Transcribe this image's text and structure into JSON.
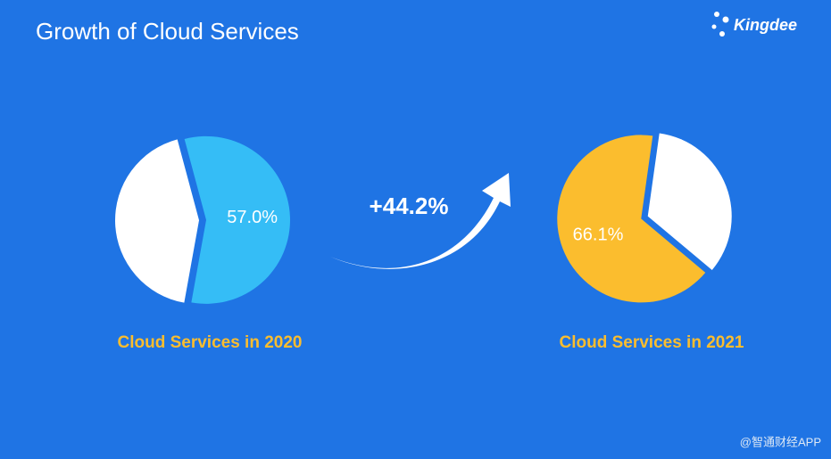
{
  "title": "Growth of Cloud Services",
  "logo": "Kingdee",
  "growth": "+44.2%",
  "watermark": "@智通财经APP",
  "chart_data": [
    {
      "type": "pie",
      "title": "Cloud Services in 2020",
      "values": [
        57.0,
        43.0
      ],
      "value_labels": [
        "57.0%",
        null
      ],
      "colors": [
        "#35bdf6",
        "#ffffff"
      ]
    },
    {
      "type": "pie",
      "title": "Cloud Services in 2021",
      "values": [
        66.1,
        33.9
      ],
      "value_labels": [
        "66.1%",
        null
      ],
      "colors": [
        "#fbbd2e",
        "#ffffff"
      ]
    }
  ]
}
